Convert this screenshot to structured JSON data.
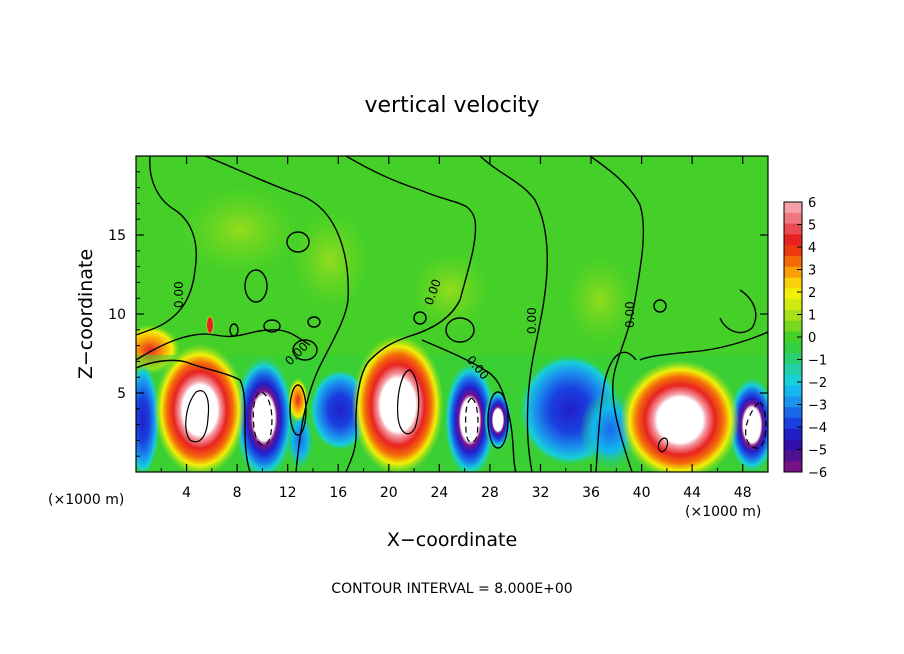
{
  "chart_data": {
    "type": "heatmap",
    "title": "vertical velocity",
    "xlabel": "X−coordinate",
    "ylabel": "Z−coordinate",
    "x_unit_left": "(×1000 m)",
    "x_unit_right": "(×1000 m)",
    "xlim": [
      0,
      50
    ],
    "ylim": [
      0,
      20
    ],
    "x_ticks": [
      4,
      8,
      12,
      16,
      20,
      24,
      28,
      32,
      36,
      40,
      44,
      48
    ],
    "y_ticks": [
      5,
      10,
      15
    ],
    "contour_interval_text": "CONTOUR INTERVAL = 8.000E+00",
    "contour_labels": [
      "0.00",
      "0.00",
      "0.00",
      "0.00",
      "0.00",
      "0.00",
      "0.00"
    ],
    "colorbar": {
      "ticks": [
        "6",
        "5",
        "4",
        "3",
        "2",
        "1",
        "0",
        "−1",
        "−2",
        "−3",
        "−4",
        "−5",
        "−6"
      ],
      "levels": [
        6,
        5.5,
        5,
        4.5,
        4,
        3.5,
        3,
        2.5,
        2,
        1.5,
        1,
        0.5,
        0,
        -0.5,
        -1,
        -1.5,
        -2,
        -2.5,
        -3,
        -3.5,
        -4,
        -4.5,
        -5,
        -5.5,
        -6
      ],
      "colors": [
        "#f4a0a8",
        "#f07880",
        "#ec4a52",
        "#e82222",
        "#ee3a10",
        "#f46a0a",
        "#f8a008",
        "#fad00a",
        "#f2f008",
        "#d0ea10",
        "#a8e018",
        "#78d81e",
        "#44d028",
        "#30d040",
        "#28d070",
        "#22d0a8",
        "#18d0d8",
        "#12b8ee",
        "#1a94ee",
        "#1a68ea",
        "#1a40e0",
        "#2020c8",
        "#3010a8",
        "#501090",
        "#781088"
      ]
    },
    "cells": [
      {
        "x": 5,
        "z": 3.8,
        "w": 7,
        "label": "updraft"
      },
      {
        "x": 10,
        "z": 3.2,
        "w": -7,
        "label": "downdraft"
      },
      {
        "x": 13,
        "z": 3.8,
        "w": 3,
        "label": "updraft"
      },
      {
        "x": 14,
        "z": 1.5,
        "w": -2,
        "label": "downdraft"
      },
      {
        "x": 17,
        "z": 3.5,
        "w": -3,
        "label": "downdraft"
      },
      {
        "x": 21.5,
        "z": 4.5,
        "w": 7,
        "label": "updraft"
      },
      {
        "x": 26,
        "z": 3.5,
        "w": -6,
        "label": "downdraft"
      },
      {
        "x": 29,
        "z": 3,
        "w": -6,
        "label": "downdraft"
      },
      {
        "x": 34,
        "z": 4,
        "w": -4,
        "label": "downdraft"
      },
      {
        "x": 38,
        "z": 3,
        "w": -3,
        "label": "downdraft"
      },
      {
        "x": 43,
        "z": 3.8,
        "w": 7,
        "label": "updraft"
      },
      {
        "x": 49,
        "z": 3,
        "w": -7,
        "label": "downdraft"
      }
    ]
  }
}
